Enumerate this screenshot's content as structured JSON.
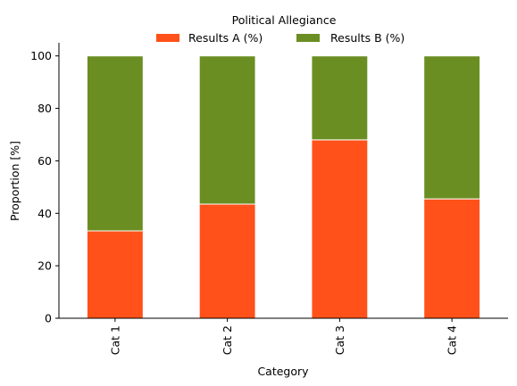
{
  "chart_data": {
    "type": "bar",
    "stacked": true,
    "title": "",
    "xlabel": "Category",
    "ylabel": "Proportion [%]",
    "ylim": [
      0,
      105
    ],
    "yticks": [
      0,
      20,
      40,
      60,
      80,
      100
    ],
    "categories": [
      "Cat 1",
      "Cat 2",
      "Cat 3",
      "Cat 4"
    ],
    "series": [
      {
        "name": "Results A (%)",
        "values": [
          33.3,
          43.5,
          68.0,
          45.5
        ],
        "color": "#ff5119"
      },
      {
        "name": "Results B (%)",
        "values": [
          66.7,
          56.5,
          32.0,
          54.5
        ],
        "color": "#6b8e23"
      }
    ],
    "legend": {
      "title": "Political Allegiance",
      "placement": "top-center"
    },
    "grid": false,
    "x_tick_rotation": "vertical"
  }
}
